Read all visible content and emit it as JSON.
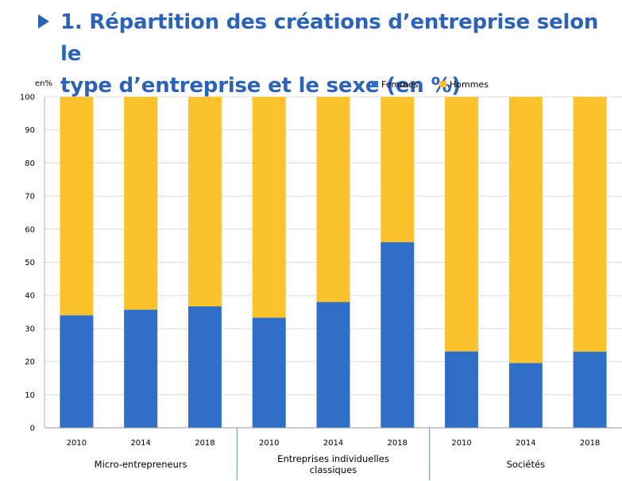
{
  "title_line1": "1. Répartition des créations d’entreprise selon le",
  "title_line2": "type d’entreprise et le sexe (en %)",
  "chart_data": {
    "type": "bar",
    "stacked": true,
    "unit_label": "en%",
    "ylim": [
      0,
      100
    ],
    "yticks": [
      0,
      10,
      20,
      30,
      40,
      50,
      60,
      70,
      80,
      90,
      100
    ],
    "categories": [
      "2010",
      "2014",
      "2018",
      "2010",
      "2014",
      "2018",
      "2010",
      "2014",
      "2018"
    ],
    "groups": [
      {
        "label_lines": [
          "Micro-entrepreneurs"
        ],
        "start": 0,
        "count": 3
      },
      {
        "label_lines": [
          "Entreprises individuelles",
          "classiques"
        ],
        "start": 3,
        "count": 3
      },
      {
        "label_lines": [
          "Sociétés"
        ],
        "start": 6,
        "count": 3
      }
    ],
    "series": [
      {
        "name": "Femmes",
        "color": "#2f6fc8",
        "values": [
          34,
          35.7,
          36.7,
          33.3,
          38,
          56.1,
          23.1,
          19.6,
          23
        ]
      },
      {
        "name": "Hommes",
        "color": "#fcc22e",
        "values": [
          66,
          64.3,
          63.3,
          66.7,
          62,
          43.9,
          76.9,
          80.4,
          77
        ]
      }
    ],
    "legend_position": "top-right",
    "grid": true
  }
}
